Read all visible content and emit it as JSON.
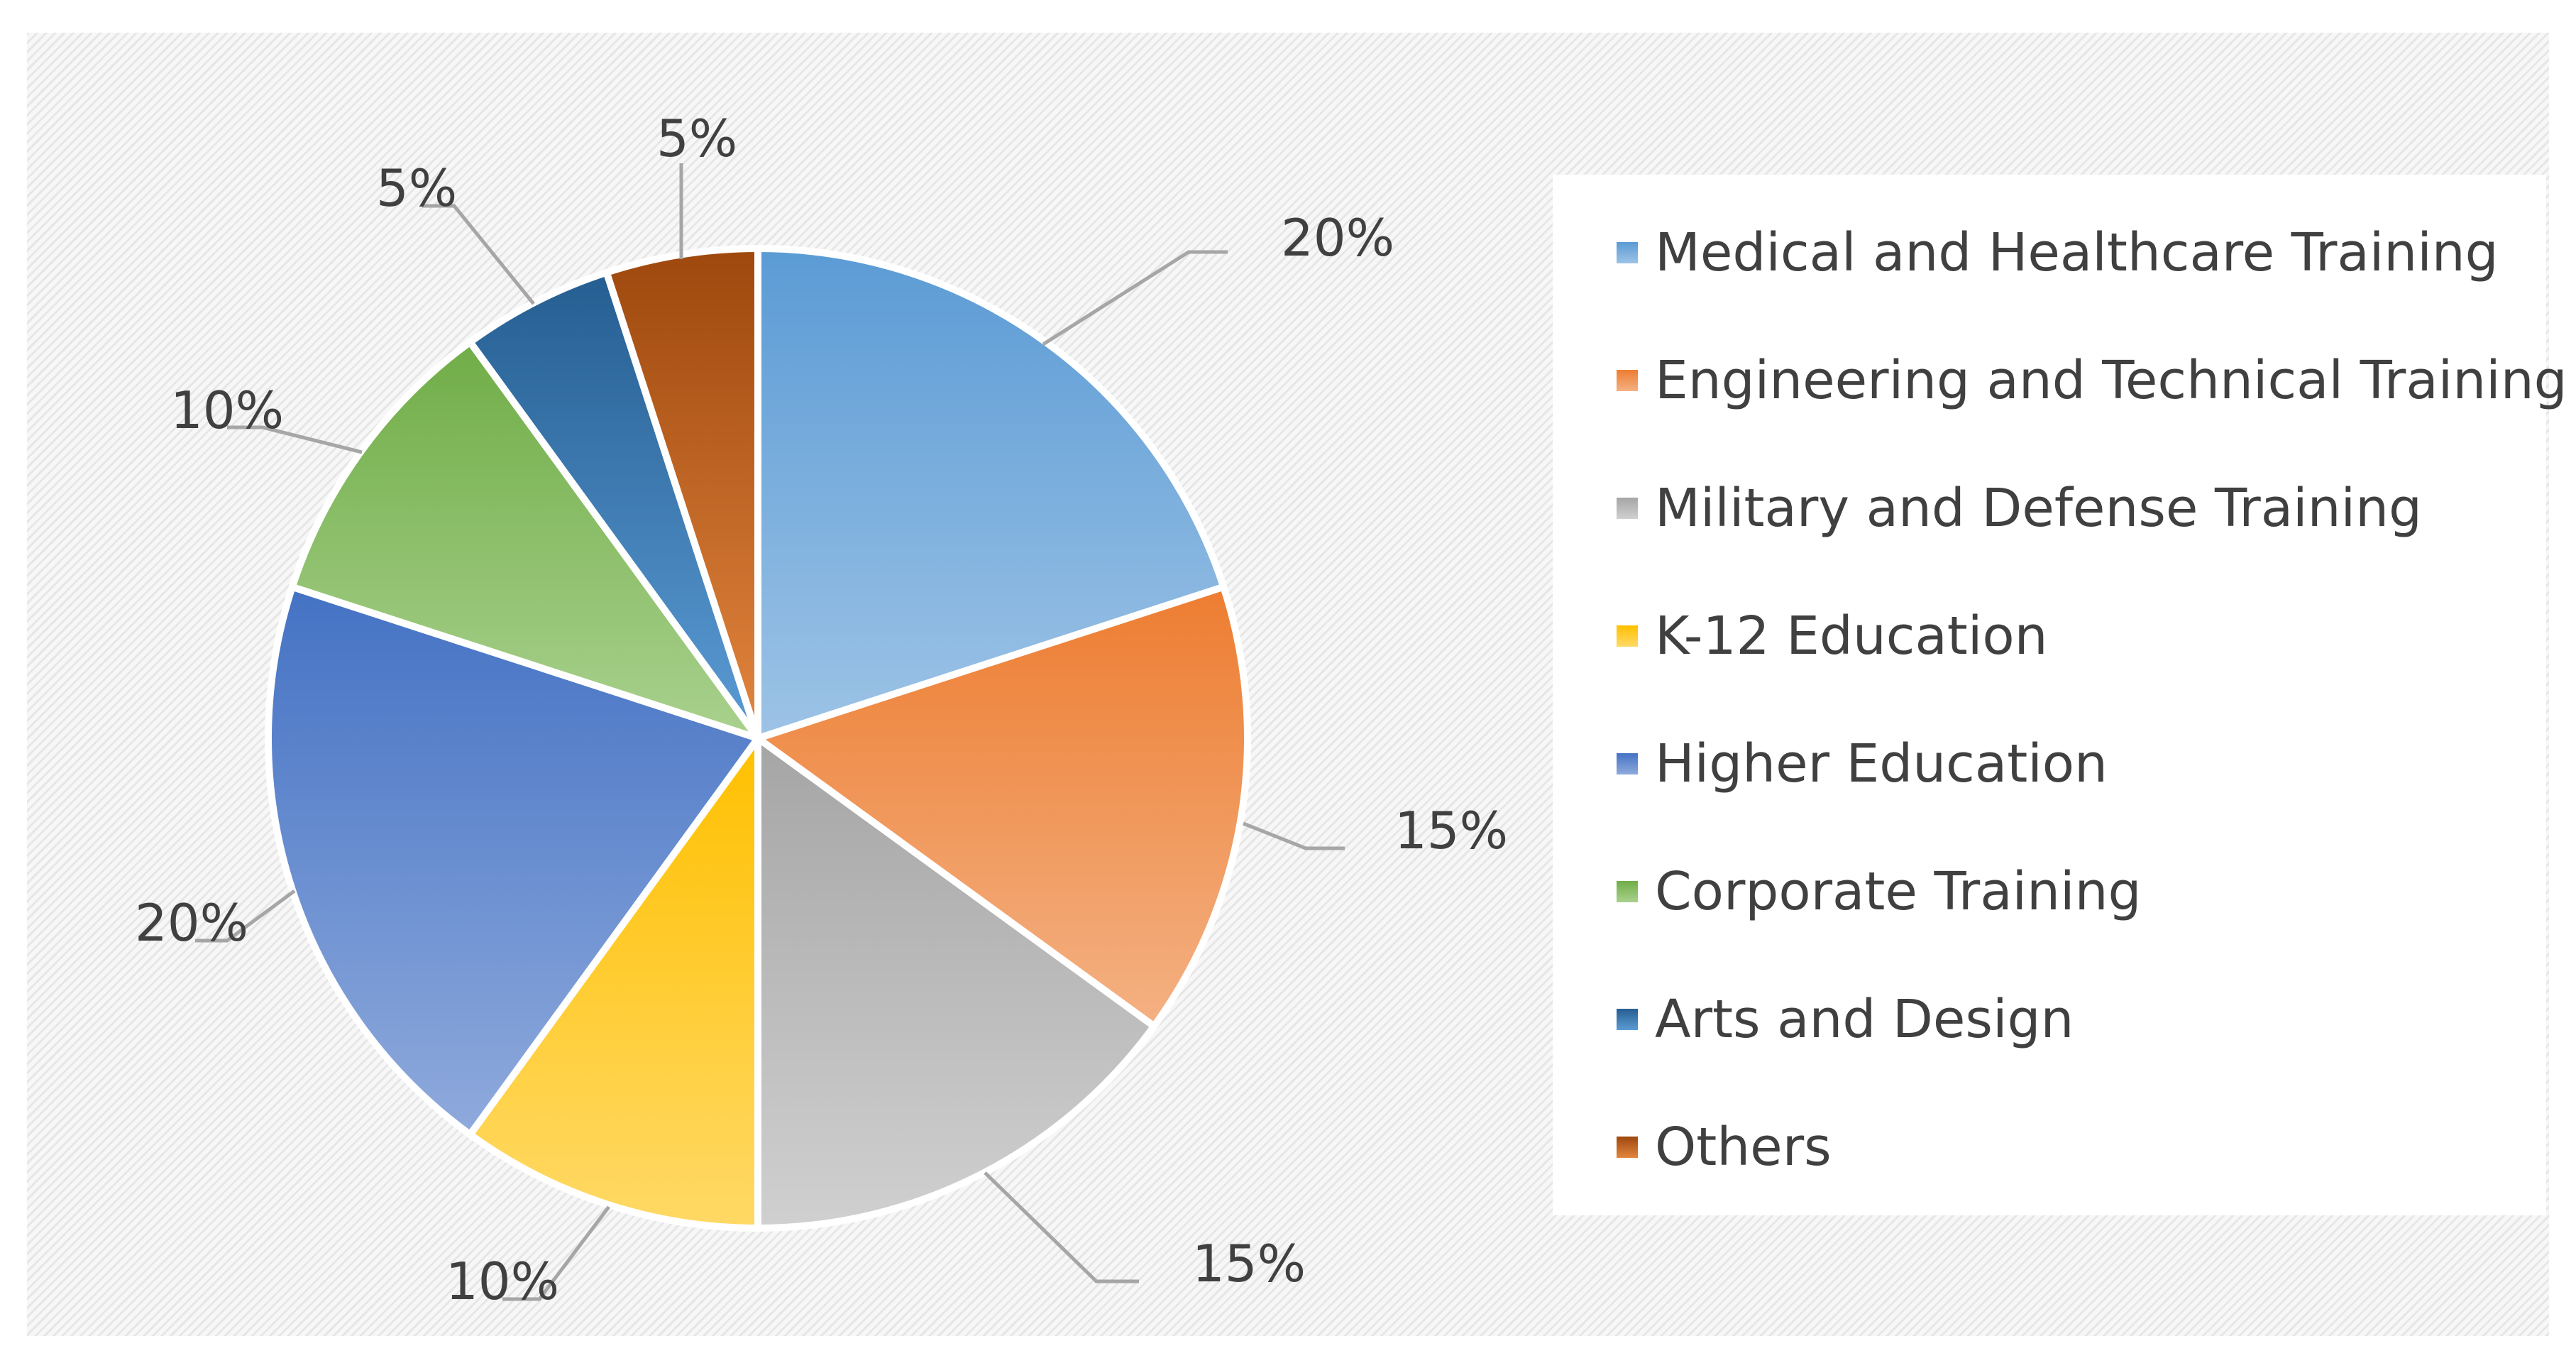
{
  "chart_data": {
    "type": "pie",
    "title": "",
    "categories": [
      "Medical and Healthcare Training",
      "Engineering and Technical Training",
      "Military and Defense Training",
      "K-12 Education",
      "Higher Education",
      "Corporate Training",
      "Arts and Design",
      "Others"
    ],
    "values": [
      20,
      15,
      15,
      10,
      20,
      10,
      5,
      5
    ],
    "data_labels": [
      "20%",
      "15%",
      "15%",
      "10%",
      "20%",
      "10%",
      "5%",
      "5%"
    ],
    "colors": [
      [
        "#9dc3e6",
        "#5b9bd5"
      ],
      [
        "#f4b183",
        "#ed7d31"
      ],
      [
        "#d0d0d0",
        "#a5a5a5"
      ],
      [
        "#ffd966",
        "#ffc000"
      ],
      [
        "#8faadc",
        "#4472c4"
      ],
      [
        "#a9d18e",
        "#70ad47"
      ],
      [
        "#5b9bd5",
        "#255e91"
      ],
      [
        "#e2853e",
        "#9e480e"
      ]
    ],
    "legend_position": "right"
  }
}
